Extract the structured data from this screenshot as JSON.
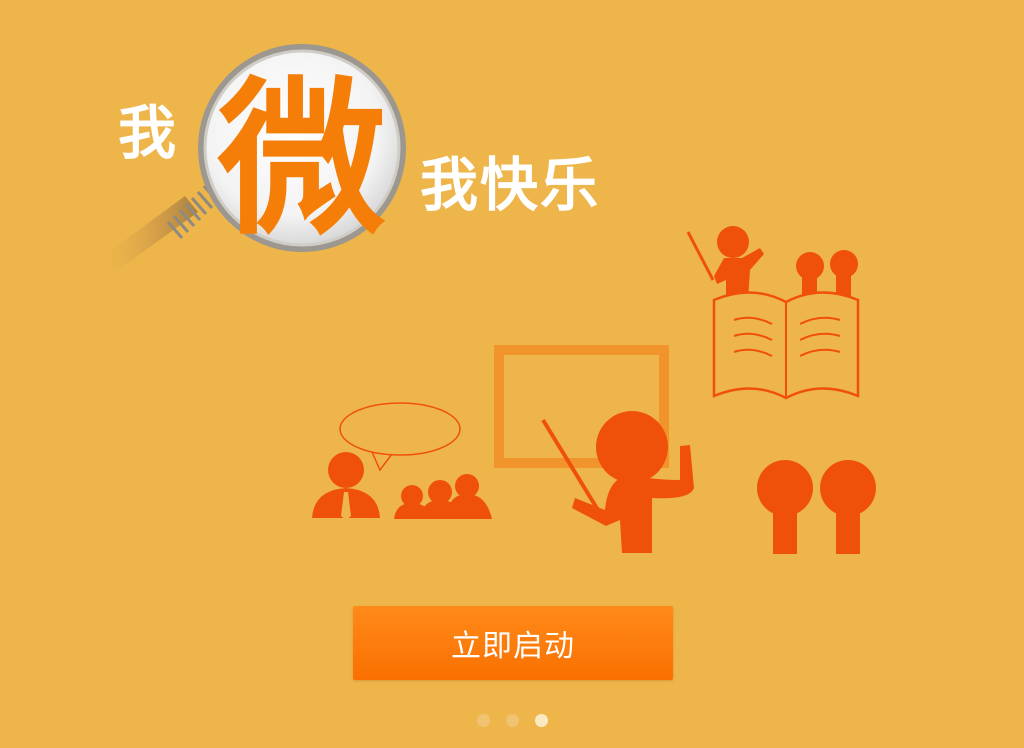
{
  "colors": {
    "background": "#eeb54a",
    "illustration": "#f0510a",
    "button": "#f97a00",
    "button_text": "#ffffff"
  },
  "slogan": {
    "prefix": "我",
    "highlight": "微",
    "rest": "我快乐"
  },
  "start_button": {
    "label": "立即启动"
  },
  "pager": {
    "total": 3,
    "current": 3
  }
}
